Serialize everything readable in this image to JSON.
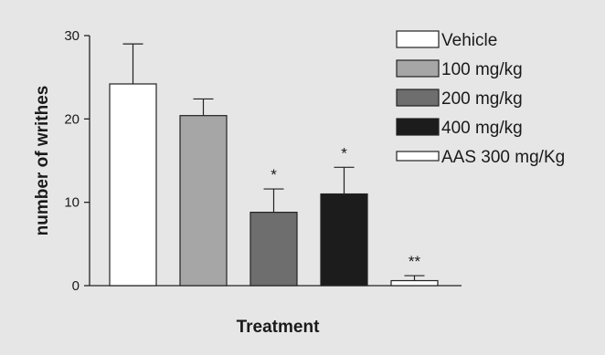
{
  "chart_data": {
    "type": "bar",
    "xlabel": "Treatment",
    "ylabel": "number of writhes",
    "ylim": [
      0,
      30
    ],
    "yticks": [
      "0",
      "10",
      "20",
      "30"
    ],
    "grid": false,
    "legend_position": "top-right",
    "series": [
      {
        "name": "Vehicle",
        "value": 24.2,
        "error": 4.8,
        "color": "#ffffff",
        "significance": ""
      },
      {
        "name": "100 mg/kg",
        "value": 20.4,
        "error": 2.0,
        "color": "#a6a6a6",
        "significance": ""
      },
      {
        "name": "200 mg/kg",
        "value": 8.8,
        "error": 2.8,
        "color": "#6e6e6e",
        "significance": "*"
      },
      {
        "name": "400 mg/kg",
        "value": 11.0,
        "error": 3.2,
        "color": "#1c1c1c",
        "significance": "*"
      },
      {
        "name": "AAS 300 mg/Kg",
        "value": 0.6,
        "error": 0.6,
        "color": "#ffffff",
        "significance": "**"
      }
    ]
  }
}
